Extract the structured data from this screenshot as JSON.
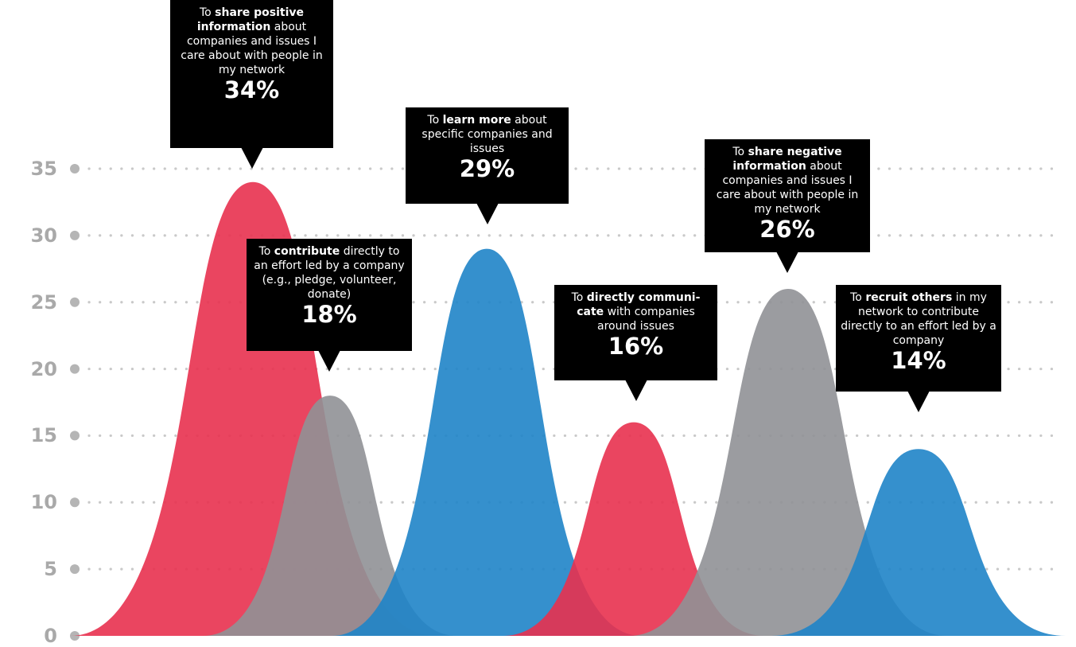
{
  "chart_data": {
    "type": "area",
    "ylim": [
      0,
      35
    ],
    "yticks": [
      "0",
      "5",
      "10",
      "15",
      "20",
      "25",
      "30",
      "35"
    ],
    "grid": true,
    "colors": {
      "red": "#e8314f",
      "blue": "#1f84c8",
      "gray": "#909196",
      "grid": "#c9c9c9"
    },
    "series": [
      {
        "value": 34,
        "value_label": "34%",
        "color": "red",
        "text_parts": [
          {
            "t": "To ",
            "b": false
          },
          {
            "t": "share positive information",
            "b": true
          },
          {
            "t": " about companies and issues I care about with people in my network",
            "b": false
          }
        ]
      },
      {
        "value": 18,
        "value_label": "18%",
        "color": "gray",
        "text_parts": [
          {
            "t": "To ",
            "b": false
          },
          {
            "t": "contribute",
            "b": true
          },
          {
            "t": " directly to an effort led by a company (e.g., pledge, volunteer, donate)",
            "b": false
          }
        ]
      },
      {
        "value": 29,
        "value_label": "29%",
        "color": "blue",
        "text_parts": [
          {
            "t": "To ",
            "b": false
          },
          {
            "t": "learn more",
            "b": true
          },
          {
            "t": " about specific companies and issues",
            "b": false
          }
        ]
      },
      {
        "value": 16,
        "value_label": "16%",
        "color": "red",
        "text_parts": [
          {
            "t": "To ",
            "b": false
          },
          {
            "t": "directly communi-cate",
            "b": true
          },
          {
            "t": " with companies around issues",
            "b": false
          }
        ]
      },
      {
        "value": 26,
        "value_label": "26%",
        "color": "gray",
        "text_parts": [
          {
            "t": "To ",
            "b": false
          },
          {
            "t": "share negative information",
            "b": true
          },
          {
            "t": " about companies and issues I care about with people in my network",
            "b": false
          }
        ]
      },
      {
        "value": 14,
        "value_label": "14%",
        "color": "blue",
        "text_parts": [
          {
            "t": "To ",
            "b": false
          },
          {
            "t": "recruit others",
            "b": true
          },
          {
            "t": " in my network to contribute directly to an effort led by a company",
            "b": false
          }
        ]
      }
    ]
  }
}
